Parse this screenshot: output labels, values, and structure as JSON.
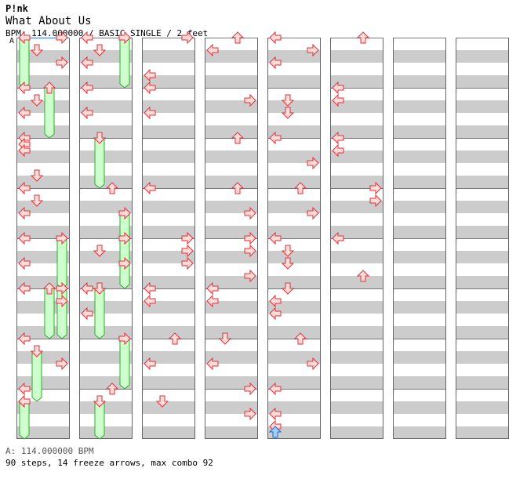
{
  "song": {
    "artist": "P!nk",
    "title": "What About Us",
    "info": "BPM: 114.000000 / BASIC SINGLE / 2 feet"
  },
  "bpm_marker": "A",
  "footer": {
    "bpm_line": "A: 114.000000 BPM",
    "summary": "90 steps, 14 freeze arrows, max combo 92"
  },
  "colors": {
    "stripe": "#cccccc",
    "arrow_fill": "#ffdcdc",
    "arrow_stroke": "#dd3333",
    "freeze_fill": "#ccffcc",
    "freeze_stroke": "#33aa33",
    "blue_fill": "#9fd0ff",
    "blue_stroke": "#2266cc",
    "start_line": "#6699cc"
  },
  "chart_data": {
    "type": "step-chart",
    "lanes": [
      "left",
      "down",
      "up",
      "right"
    ],
    "columns": 8,
    "measures_per_column": 8,
    "steps_per_measure": 16,
    "notes": [
      {
        "m": 1,
        "s": 0,
        "d": "right"
      },
      {
        "m": 1,
        "s": 4,
        "d": "down"
      },
      {
        "m": 1,
        "s": 8,
        "d": "right"
      },
      {
        "m": 2,
        "s": 0,
        "d": "left"
      },
      {
        "m": 2,
        "s": 4,
        "d": "down"
      },
      {
        "m": 2,
        "s": 8,
        "d": "left"
      },
      {
        "m": 3,
        "s": 0,
        "d": "left"
      },
      {
        "m": 3,
        "s": 2,
        "d": "left"
      },
      {
        "m": 3,
        "s": 4,
        "d": "left"
      },
      {
        "m": 3,
        "s": 12,
        "d": "down"
      },
      {
        "m": 4,
        "s": 0,
        "d": "left"
      },
      {
        "m": 4,
        "s": 4,
        "d": "down"
      },
      {
        "m": 4,
        "s": 8,
        "d": "left"
      },
      {
        "m": 5,
        "s": 0,
        "d": "left"
      },
      {
        "m": 5,
        "s": 8,
        "d": "left"
      },
      {
        "m": 6,
        "s": 0,
        "d": "left"
      },
      {
        "m": 6,
        "s": 4,
        "d": "right"
      },
      {
        "m": 7,
        "s": 0,
        "d": "left"
      },
      {
        "m": 7,
        "s": 4,
        "d": "down"
      },
      {
        "m": 7,
        "s": 8,
        "d": "right"
      },
      {
        "m": 8,
        "s": 0,
        "d": "left"
      },
      {
        "m": 8,
        "s": 4,
        "d": "left"
      },
      {
        "m": 9,
        "s": 0,
        "d": "left"
      },
      {
        "m": 9,
        "s": 4,
        "d": "down"
      },
      {
        "m": 9,
        "s": 8,
        "d": "left"
      },
      {
        "m": 10,
        "s": 0,
        "d": "left"
      },
      {
        "m": 10,
        "s": 8,
        "d": "left"
      },
      {
        "m": 12,
        "s": 0,
        "d": "up"
      },
      {
        "m": 13,
        "s": 0,
        "d": "right"
      },
      {
        "m": 13,
        "s": 4,
        "d": "down"
      },
      {
        "m": 13,
        "s": 8,
        "d": "right"
      },
      {
        "m": 14,
        "s": 0,
        "d": "left"
      },
      {
        "m": 14,
        "s": 8,
        "d": "left"
      },
      {
        "m": 16,
        "s": 0,
        "d": "up"
      },
      {
        "m": 17,
        "s": 0,
        "d": "right"
      },
      {
        "m": 17,
        "s": 12,
        "d": "left"
      },
      {
        "m": 18,
        "s": 0,
        "d": "left"
      },
      {
        "m": 18,
        "s": 8,
        "d": "left"
      },
      {
        "m": 20,
        "s": 0,
        "d": "left"
      },
      {
        "m": 21,
        "s": 0,
        "d": "right"
      },
      {
        "m": 21,
        "s": 4,
        "d": "right"
      },
      {
        "m": 21,
        "s": 8,
        "d": "right"
      },
      {
        "m": 22,
        "s": 0,
        "d": "left"
      },
      {
        "m": 22,
        "s": 4,
        "d": "left"
      },
      {
        "m": 23,
        "s": 0,
        "d": "up"
      },
      {
        "m": 23,
        "s": 8,
        "d": "left"
      },
      {
        "m": 24,
        "s": 4,
        "d": "down"
      },
      {
        "m": 25,
        "s": 0,
        "d": "up"
      },
      {
        "m": 25,
        "s": 4,
        "d": "left"
      },
      {
        "m": 26,
        "s": 4,
        "d": "right"
      },
      {
        "m": 27,
        "s": 0,
        "d": "up"
      },
      {
        "m": 28,
        "s": 0,
        "d": "up"
      },
      {
        "m": 28,
        "s": 8,
        "d": "right"
      },
      {
        "m": 29,
        "s": 0,
        "d": "right"
      },
      {
        "m": 29,
        "s": 4,
        "d": "right"
      },
      {
        "m": 29,
        "s": 12,
        "d": "right"
      },
      {
        "m": 30,
        "s": 0,
        "d": "left"
      },
      {
        "m": 30,
        "s": 4,
        "d": "left"
      },
      {
        "m": 31,
        "s": 0,
        "d": "down"
      },
      {
        "m": 31,
        "s": 8,
        "d": "left"
      },
      {
        "m": 32,
        "s": 0,
        "d": "right"
      },
      {
        "m": 32,
        "s": 8,
        "d": "right"
      },
      {
        "m": 33,
        "s": 0,
        "d": "left"
      },
      {
        "m": 33,
        "s": 4,
        "d": "right"
      },
      {
        "m": 33,
        "s": 8,
        "d": "left"
      },
      {
        "m": 34,
        "s": 4,
        "d": "down"
      },
      {
        "m": 34,
        "s": 8,
        "d": "down"
      },
      {
        "m": 35,
        "s": 0,
        "d": "left"
      },
      {
        "m": 35,
        "s": 8,
        "d": "right"
      },
      {
        "m": 36,
        "s": 0,
        "d": "up"
      },
      {
        "m": 36,
        "s": 8,
        "d": "right"
      },
      {
        "m": 37,
        "s": 0,
        "d": "left"
      },
      {
        "m": 37,
        "s": 4,
        "d": "down"
      },
      {
        "m": 37,
        "s": 8,
        "d": "down"
      },
      {
        "m": 38,
        "s": 0,
        "d": "down"
      },
      {
        "m": 38,
        "s": 4,
        "d": "left"
      },
      {
        "m": 38,
        "s": 8,
        "d": "left"
      },
      {
        "m": 39,
        "s": 0,
        "d": "up"
      },
      {
        "m": 39,
        "s": 8,
        "d": "right"
      },
      {
        "m": 40,
        "s": 0,
        "d": "left"
      },
      {
        "m": 40,
        "s": 8,
        "d": "left"
      },
      {
        "m": 41,
        "s": 0,
        "d": "up"
      },
      {
        "m": 42,
        "s": 0,
        "d": "left"
      },
      {
        "m": 42,
        "s": 4,
        "d": "left"
      },
      {
        "m": 43,
        "s": 0,
        "d": "left"
      },
      {
        "m": 43,
        "s": 4,
        "d": "left"
      },
      {
        "m": 44,
        "s": 0,
        "d": "right"
      },
      {
        "m": 44,
        "s": 4,
        "d": "right"
      },
      {
        "m": 45,
        "s": 0,
        "d": "left"
      },
      {
        "m": 45,
        "s": 12,
        "d": "up"
      }
    ],
    "freezes": [
      {
        "m": 1,
        "s": 0,
        "d": "left",
        "len": 16
      },
      {
        "m": 2,
        "s": 0,
        "d": "up",
        "len": 16
      },
      {
        "m": 5,
        "s": 0,
        "d": "right",
        "len": 16
      },
      {
        "m": 6,
        "s": 0,
        "d": "up",
        "len": 16
      },
      {
        "m": 6,
        "s": 0,
        "d": "right",
        "len": 16
      },
      {
        "m": 7,
        "s": 4,
        "d": "down",
        "len": 16
      },
      {
        "m": 8,
        "s": 4,
        "d": "left",
        "len": 16
      },
      {
        "m": 9,
        "s": 0,
        "d": "right",
        "len": 16
      },
      {
        "m": 11,
        "s": 0,
        "d": "down",
        "len": 16
      },
      {
        "m": 12,
        "s": 8,
        "d": "right",
        "len": 16
      },
      {
        "m": 13,
        "s": 0,
        "d": "right",
        "len": 16
      },
      {
        "m": 14,
        "s": 0,
        "d": "down",
        "len": 16
      },
      {
        "m": 15,
        "s": 0,
        "d": "right",
        "len": 16
      },
      {
        "m": 16,
        "s": 4,
        "d": "down",
        "len": 16
      }
    ],
    "blue_arrow": {
      "m": 40,
      "s": 12,
      "d": "left"
    }
  }
}
